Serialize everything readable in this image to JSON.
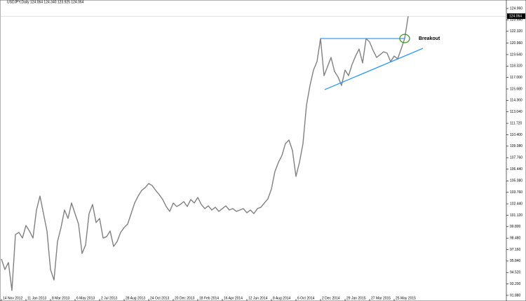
{
  "chart_data": {
    "type": "line",
    "title": "USDJPY,Daily  124.064 124.340 123.925 124.064",
    "categories": [
      "14 Nov 2012",
      null,
      null,
      null,
      null,
      null,
      null,
      "11 Jan 2013",
      null,
      null,
      null,
      null,
      null,
      null,
      "8 Mar 2013",
      null,
      null,
      null,
      null,
      null,
      null,
      "6 May 2013",
      null,
      null,
      null,
      null,
      null,
      null,
      "2 Jul 2013",
      null,
      null,
      null,
      null,
      null,
      null,
      "28 Aug 2013",
      null,
      null,
      null,
      null,
      null,
      null,
      "24 Oct 2013",
      null,
      null,
      null,
      null,
      null,
      null,
      "20 Dec 2013",
      null,
      null,
      null,
      null,
      null,
      null,
      "18 Feb 2014",
      null,
      null,
      null,
      null,
      null,
      null,
      "16 Apr 2014",
      null,
      null,
      null,
      null,
      null,
      null,
      "12 Jun 2014",
      null,
      null,
      null,
      null,
      null,
      null,
      "8 Aug 2014",
      null,
      null,
      null,
      null,
      null,
      null,
      "6 Oct 2014",
      null,
      null,
      null,
      null,
      null,
      null,
      "2 Dec 2014",
      null,
      null,
      null,
      null,
      null,
      null,
      "29 Jan 2015",
      null,
      null,
      null,
      null,
      null,
      null,
      "27 Mar 2015",
      null,
      null,
      null,
      null,
      null,
      null,
      "25 May 2015",
      null,
      null,
      null,
      null
    ],
    "series": [
      {
        "color": "#808080",
        "values": [
          96.07,
          94.86,
          95.67,
          92.44,
          98.89,
          99.14,
          98.49,
          99.94,
          99.3,
          98.49,
          101.72,
          103.33,
          101.31,
          99.3,
          94.86,
          93.65,
          98.09,
          99.7,
          101.72,
          100.75,
          102.53,
          101.31,
          100.1,
          96.71,
          97.68,
          101.31,
          102.36,
          100.27,
          100.75,
          98.49,
          98.65,
          99.3,
          97.52,
          98.09,
          99.14,
          99.7,
          100.1,
          101.31,
          102.53,
          103.33,
          103.98,
          104.3,
          104.78,
          104.54,
          103.98,
          103.49,
          102.93,
          102.12,
          101.56,
          102.53,
          102.12,
          102.36,
          102.69,
          102.12,
          102.93,
          102.53,
          103.17,
          102.36,
          101.88,
          102.2,
          101.72,
          102.04,
          101.56,
          101.88,
          102.2,
          101.72,
          101.88,
          101.56,
          101.72,
          101.88,
          101.4,
          101.72,
          101.31,
          101.88,
          102.04,
          102.53,
          103.01,
          104.14,
          106.16,
          107.21,
          108.01,
          109.38,
          109.79,
          108.58,
          105.59,
          107.21,
          109.38,
          113.82,
          116.08,
          117.86,
          118.83,
          121.49,
          117.21,
          118.26,
          119.31,
          117.7,
          117.05,
          116.08,
          117.86,
          117.21,
          118.5,
          119.47,
          120.28,
          118.67,
          121.49,
          121.09,
          120.12,
          119.31,
          119.63,
          119.96,
          119.8,
          118.83,
          119.47,
          119.15,
          120.28,
          121.49,
          124.064
        ]
      }
    ],
    "ylim": [
      91.23,
      125.61
    ],
    "yticks": [
      {
        "value": 124.96,
        "label": "124.960"
      },
      {
        "value": 123.64,
        "label": "123.640"
      },
      {
        "value": 122.32,
        "label": "122.320"
      },
      {
        "value": 120.96,
        "label": "120.960"
      },
      {
        "value": 119.64,
        "label": "119.640"
      },
      {
        "value": 118.32,
        "label": "118.320"
      },
      {
        "value": 117.0,
        "label": "117.000"
      },
      {
        "value": 115.68,
        "label": "115.680"
      },
      {
        "value": 114.36,
        "label": "114.360"
      },
      {
        "value": 113.04,
        "label": "113.040"
      },
      {
        "value": 111.72,
        "label": "111.720"
      },
      {
        "value": 110.4,
        "label": "110.400"
      },
      {
        "value": 109.08,
        "label": "109.080"
      },
      {
        "value": 107.76,
        "label": "107.760"
      },
      {
        "value": 106.44,
        "label": "106.440"
      },
      {
        "value": 105.08,
        "label": "105.080"
      },
      {
        "value": 103.76,
        "label": "103.760"
      },
      {
        "value": 102.44,
        "label": "102.440"
      },
      {
        "value": 101.12,
        "label": "101.120"
      },
      {
        "value": 99.8,
        "label": "99.800"
      },
      {
        "value": 98.48,
        "label": "98.480"
      },
      {
        "value": 97.16,
        "label": "97.160"
      },
      {
        "value": 95.84,
        "label": "95.840"
      },
      {
        "value": 94.52,
        "label": "94.520"
      },
      {
        "value": 93.2,
        "label": "93.200"
      },
      {
        "value": 91.88,
        "label": "91.880"
      }
    ],
    "current_price": 124.064,
    "trendlines": [
      {
        "color": "#1e90ff",
        "x": [
          91,
          115
        ],
        "y": [
          121.49,
          121.49
        ]
      },
      {
        "color": "#1e90ff",
        "x": [
          92.2,
          120.2
        ],
        "y": [
          115.6,
          120.36
        ]
      }
    ],
    "annotation": "Breakout",
    "annotation_color": "#3c9a2a"
  }
}
